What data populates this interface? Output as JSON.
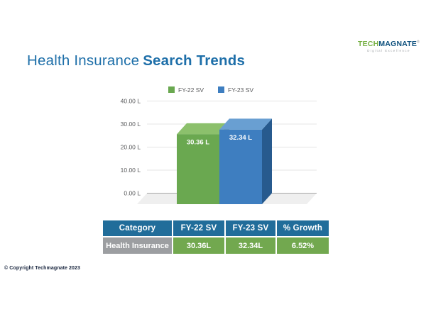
{
  "page": {
    "title_regular": "Health Insurance",
    "title_bold": "Search Trends",
    "copyright": "© Copyright Techmagnate 2023"
  },
  "logo": {
    "part1": "TECH",
    "part2": "MAGNATE",
    "registered": "®",
    "tagline": "Digital Excellence"
  },
  "theme": {
    "title": "#1e6fa9",
    "logo_green": "#76b043",
    "logo_blue": "#10527f",
    "table_header_bg": "#216d9a",
    "table_category_bg": "#9c9ea1",
    "table_value_bg": "#72a84f",
    "copyright": "#17243d"
  },
  "chart_data": {
    "type": "bar",
    "style": "3d-column",
    "title": "",
    "categories": [
      "Health Insurance"
    ],
    "series": [
      {
        "name": "FY-22 SV",
        "value": 30.36,
        "label": "30.36 L",
        "color": "#6aa850",
        "color_top": "#8cc06c",
        "color_side": "#4d7d39"
      },
      {
        "name": "FY-23 SV",
        "value": 32.34,
        "label": "32.34 L",
        "color": "#3e7ec0",
        "color_top": "#699fd2",
        "color_side": "#275a8e"
      }
    ],
    "ylim": [
      0,
      40
    ],
    "yticks": [
      {
        "value": 0,
        "label": "0.00 L"
      },
      {
        "value": 10,
        "label": "10.00 L"
      },
      {
        "value": 20,
        "label": "20.00 L"
      },
      {
        "value": 30,
        "label": "30.00 L"
      },
      {
        "value": 40,
        "label": "40.00 L"
      }
    ],
    "grid": true,
    "legend_position": "top"
  },
  "table": {
    "headers": [
      "Category",
      "FY-22 SV",
      "FY-23 SV",
      "% Growth"
    ],
    "row": {
      "category": "Health Insurance",
      "fy22": "30.36L",
      "fy23": "32.34L",
      "growth": "6.52%"
    }
  }
}
